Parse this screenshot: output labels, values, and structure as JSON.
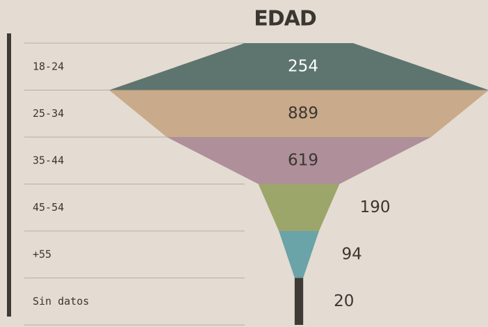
{
  "chart_data": {
    "type": "funnel",
    "title": "EDAD",
    "categories": [
      "18-24",
      "25-34",
      "35-44",
      "45-54",
      "+55",
      "Sin datos"
    ],
    "values": [
      254,
      889,
      619,
      190,
      94,
      20
    ],
    "colors": [
      "#5e756f",
      "#c9aa8a",
      "#ae8f9a",
      "#9ca66a",
      "#6aa3a8",
      "#3e3b36"
    ]
  }
}
